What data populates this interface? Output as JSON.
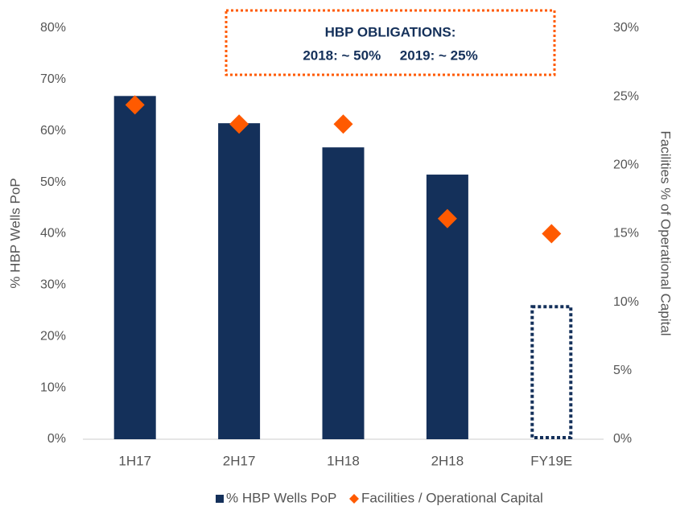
{
  "chart_data": {
    "type": "bar_diamond",
    "annotations": [
      "HBP OBLIGATIONS:",
      "2018: ~ 50%     2019: ~ 25%"
    ],
    "ylabel": "% HBP Wells PoP",
    "y2label": "Facilities % of Operational Capital",
    "categories": [
      "1H17",
      "2H17",
      "1H18",
      "2H18",
      "FY19E"
    ],
    "series": [
      {
        "name": "% HBP Wells PoP",
        "color": "#14305a",
        "values": [
          66.8,
          61.5,
          56.8,
          51.5,
          26.1
        ],
        "bar_styles": [
          "solid",
          "solid",
          "solid",
          "solid",
          "dotted"
        ]
      },
      {
        "name": "Facilities / Operational Capital",
        "color": "#ff5a00",
        "axis": "y2",
        "values": [
          24.4,
          23.0,
          23.0,
          16.1,
          15.0
        ]
      }
    ],
    "ylim": [
      0,
      80
    ],
    "yticks": [
      {
        "value": 0,
        "label": "0%"
      },
      {
        "value": 10,
        "label": "10%"
      },
      {
        "value": 20,
        "label": "20%"
      },
      {
        "value": 30,
        "label": "30%"
      },
      {
        "value": 40,
        "label": "40%"
      },
      {
        "value": 50,
        "label": "50%"
      },
      {
        "value": 60,
        "label": "60%"
      },
      {
        "value": 70,
        "label": "70%"
      },
      {
        "value": 80,
        "label": "80%"
      }
    ],
    "y2lim": [
      0,
      30
    ],
    "y2ticks": [
      {
        "value": 0,
        "label": "0%"
      },
      {
        "value": 5,
        "label": "5%"
      },
      {
        "value": 10,
        "label": "10%"
      },
      {
        "value": 15,
        "label": "15%"
      },
      {
        "value": 20,
        "label": "20%"
      },
      {
        "value": 25,
        "label": "25%"
      },
      {
        "value": 30,
        "label": "30%"
      }
    ],
    "legend": "bottom"
  }
}
